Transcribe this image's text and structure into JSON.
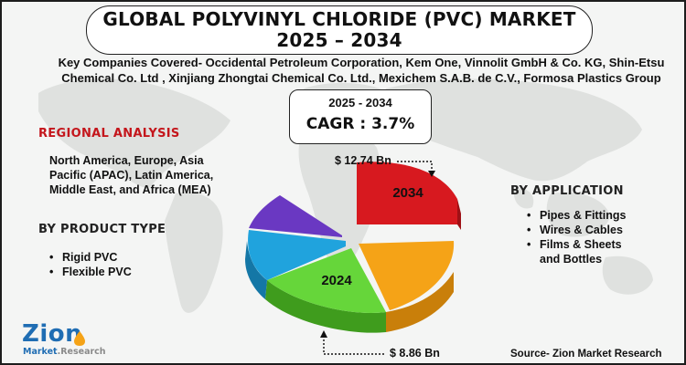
{
  "title": {
    "line1": "GLOBAL POLYVINYL CHLORIDE (PVC) MARKET",
    "line2": "2025 – 2034"
  },
  "key_companies": {
    "line1": "Key Companies Covered- Occidental Petroleum Corporation, Kem One, Vinnolit GmbH & Co. KG, Shin-Etsu",
    "line2": "Chemical Co. Ltd , Xinjiang Zhongtai Chemical Co. Ltd., Mexichem S.A.B. de C.V., Formosa Plastics Group"
  },
  "forecast": {
    "years": "2025 - 2034",
    "cagr": "CAGR : 3.7%"
  },
  "regional_analysis": {
    "heading": "REGIONAL ANALYSIS",
    "text": "North America, Europe, Asia Pacific (APAC), Latin America, Middle East, and Africa (MEA)"
  },
  "product_type": {
    "heading": "BY PRODUCT TYPE",
    "items": [
      "Rigid PVC",
      "Flexible PVC"
    ]
  },
  "application": {
    "heading": "BY APPLICATION",
    "items": [
      "Pipes & Fittings",
      "Wires & Cables",
      "Films & Sheets",
      "and Bottles"
    ]
  },
  "pie": {
    "label_2034": "2034",
    "label_2024": "2024",
    "value_2034": "$ 12.74 Bn",
    "value_2024": "$ 8.86 Bn"
  },
  "colors": {
    "red": "#d7191f",
    "orange": "#f5a317",
    "green": "#66d63a",
    "blue": "#20a3dd",
    "purple": "#6a38c2",
    "heading_red": "#c4161c",
    "logo_blue": "#1f6db3"
  },
  "source": "Source- Zion Market Research",
  "logo": {
    "name": "Zion",
    "sub1": "Market",
    "sub2": ".Research"
  }
}
